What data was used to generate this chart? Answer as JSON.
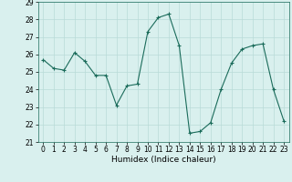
{
  "xlabel": "Humidex (Indice chaleur)",
  "ylabel": "",
  "x": [
    0,
    1,
    2,
    3,
    4,
    5,
    6,
    7,
    8,
    9,
    10,
    11,
    12,
    13,
    14,
    15,
    16,
    17,
    18,
    19,
    20,
    21,
    22,
    23
  ],
  "y": [
    25.7,
    25.2,
    25.1,
    26.1,
    25.6,
    24.8,
    24.8,
    23.1,
    24.2,
    24.3,
    27.3,
    28.1,
    28.3,
    26.5,
    21.5,
    21.6,
    22.1,
    24.0,
    25.5,
    26.3,
    26.5,
    26.6,
    24.0,
    22.2
  ],
  "line_color": "#1a6b5a",
  "marker": "+",
  "marker_size": 3,
  "bg_color": "#d9f0ee",
  "grid_color": "#b8dbd8",
  "ylim": [
    21,
    29
  ],
  "xlim": [
    -0.5,
    23.5
  ],
  "yticks": [
    21,
    22,
    23,
    24,
    25,
    26,
    27,
    28,
    29
  ],
  "xticks": [
    0,
    1,
    2,
    3,
    4,
    5,
    6,
    7,
    8,
    9,
    10,
    11,
    12,
    13,
    14,
    15,
    16,
    17,
    18,
    19,
    20,
    21,
    22,
    23
  ],
  "xlabel_fontsize": 6.5,
  "tick_fontsize": 5.5,
  "figwidth": 3.2,
  "figheight": 2.0,
  "dpi": 100
}
